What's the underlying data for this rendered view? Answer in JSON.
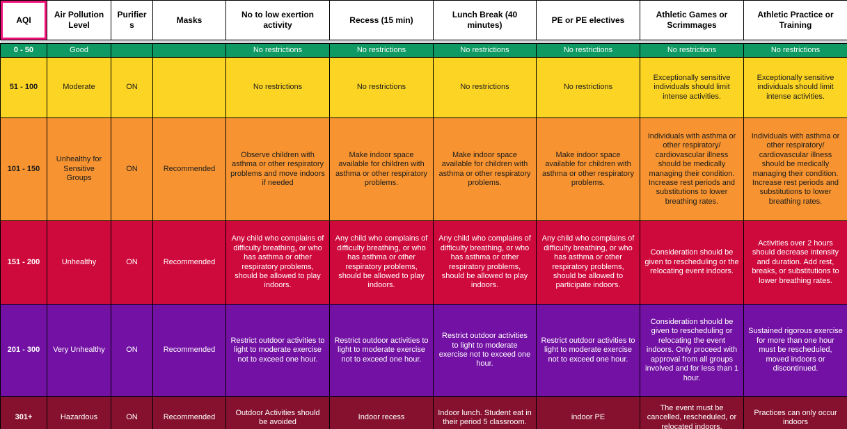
{
  "app": {
    "selected_cell": "AQI"
  },
  "colors": {
    "header_bg": "#FFFFFF",
    "header_text": "#000000",
    "grid_border": "#000000",
    "selection_border": "#F0157B",
    "hidden_rows_strip": "#D3D6DA"
  },
  "table": {
    "header": [
      "AQI",
      "Air Pollution Level",
      "Purifiers",
      "Masks",
      "No to low exertion activity",
      "Recess (15 min)",
      "Lunch Break (40 minutes)",
      "PE or PE electives",
      "Athletic Games or Scrimmages",
      "Athletic Practice or Training"
    ],
    "rows": [
      {
        "id": "good",
        "bg": "#0E9A62",
        "fg": "#FFFFFF",
        "cells": [
          "0 - 50",
          "Good",
          "",
          "",
          "No restrictions",
          "No restrictions",
          "No restrictions",
          "No restrictions",
          "No restrictions",
          "No restrictions"
        ]
      },
      {
        "id": "moderate",
        "bg": "#FCD423",
        "fg": "#1C1C1C",
        "cells": [
          "51 - 100",
          "Moderate",
          "ON",
          "",
          "No restrictions",
          "No restrictions",
          "No restrictions",
          "No restrictions",
          "Exceptionally sensitive individuals should limit intense activities.",
          "Exceptionally sensitive individuals should limit intense activities."
        ]
      },
      {
        "id": "usg",
        "bg": "#F79431",
        "fg": "#1C1C1C",
        "cells": [
          "101 - 150",
          "Unhealthy for Sensitive Groups",
          "ON",
          "Recommended",
          "Observe children with asthma or other respiratory problems and move indoors if needed",
          "Make indoor space available for children with asthma or other respiratory problems.",
          "Make indoor space available for children with asthma or other respiratory problems.",
          "Make indoor space available for children with asthma or other respiratory problems.",
          "Individuals with asthma or other respiratory/ cardiovascular illness should be medically managing their condition. Increase rest periods and substitutions to lower breathing rates.",
          "Individuals with asthma or other respiratory/ cardiovascular illness should be medically managing their condition. Increase rest periods and substitutions to lower breathing rates."
        ]
      },
      {
        "id": "unhealthy",
        "bg": "#CE093C",
        "fg": "#FFFFFF",
        "cells": [
          "151 - 200",
          "Unhealthy",
          "ON",
          "Recommended",
          "Any child who complains of difficulty breathing, or who has asthma or other respiratory problems, should be allowed to play indoors.",
          "Any child who complains of difficulty breathing, or who has asthma or other respiratory problems, should be allowed to play indoors.",
          "Any child who complains of difficulty breathing, or who has asthma or other respiratory problems, should be allowed to play indoors.",
          "Any child who complains of difficulty breathing, or who has asthma or other respiratory problems, should be allowed to participate indoors.",
          "Consideration should be given to rescheduling or the relocating event indoors.",
          "Activities over 2 hours should decrease intensity and duration. Add rest, breaks, or substitutions to lower breathing rates."
        ]
      },
      {
        "id": "very-unhealthy",
        "bg": "#7211A3",
        "fg": "#FFFFFF",
        "cells": [
          "201 - 300",
          "Very Unhealthy",
          "ON",
          "Recommended",
          "Restrict outdoor activities to light to moderate exercise not to exceed one hour.",
          "Restrict outdoor activities to light to moderate exercise not to exceed one hour.",
          "Restrict outdoor activities to light to moderate exercise not to exceed one hour.",
          "Restrict outdoor activities to light to moderate exercise not to exceed one hour.",
          "Consideration should be given to rescheduling or relocating the event indoors. Only proceed with approval from all groups involved and for less than 1 hour.",
          "Sustained rigorous exercise for more than one hour must be rescheduled, moved indoors or discontinued."
        ]
      },
      {
        "id": "hazardous",
        "bg": "#85112E",
        "fg": "#FFFFFF",
        "cells": [
          "301+",
          "Hazardous",
          "ON",
          "Recommended",
          "Outdoor Activities should be avoided",
          "Indoor recess",
          "Indoor lunch. Student eat in their period 5 classroom.",
          "indoor PE",
          "The event must be cancelled, rescheduled, or relocated indoors.",
          "Practices can only occur indoors"
        ]
      }
    ]
  }
}
